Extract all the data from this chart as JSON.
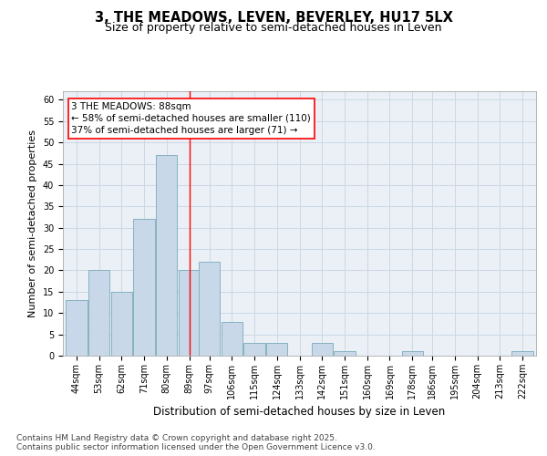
{
  "title": "3, THE MEADOWS, LEVEN, BEVERLEY, HU17 5LX",
  "subtitle": "Size of property relative to semi-detached houses in Leven",
  "xlabel": "Distribution of semi-detached houses by size in Leven",
  "ylabel": "Number of semi-detached properties",
  "footnote": "Contains HM Land Registry data © Crown copyright and database right 2025.\nContains public sector information licensed under the Open Government Licence v3.0.",
  "bins": [
    44,
    53,
    62,
    71,
    80,
    89,
    97,
    106,
    115,
    124,
    133,
    142,
    151,
    160,
    169,
    178,
    186,
    195,
    204,
    213,
    222
  ],
  "values": [
    13,
    20,
    15,
    32,
    47,
    20,
    22,
    8,
    3,
    3,
    0,
    3,
    1,
    0,
    0,
    1,
    0,
    0,
    0,
    0,
    1
  ],
  "bar_color": "#c8d8e8",
  "bar_edge_color": "#7aaabb",
  "grid_color": "#ccd8e4",
  "background_color": "#eaf0f6",
  "red_line_x": 89,
  "annotation_text": "3 THE MEADOWS: 88sqm\n← 58% of semi-detached houses are smaller (110)\n37% of semi-detached houses are larger (71) →",
  "annotation_box_color": "white",
  "annotation_box_edge": "red",
  "ylim": [
    0,
    62
  ],
  "yticks": [
    0,
    5,
    10,
    15,
    20,
    25,
    30,
    35,
    40,
    45,
    50,
    55,
    60
  ],
  "bin_width": 9,
  "title_fontsize": 10.5,
  "subtitle_fontsize": 9,
  "axis_label_fontsize": 8,
  "tick_fontsize": 7,
  "annotation_fontsize": 7.5,
  "footnote_fontsize": 6.5
}
